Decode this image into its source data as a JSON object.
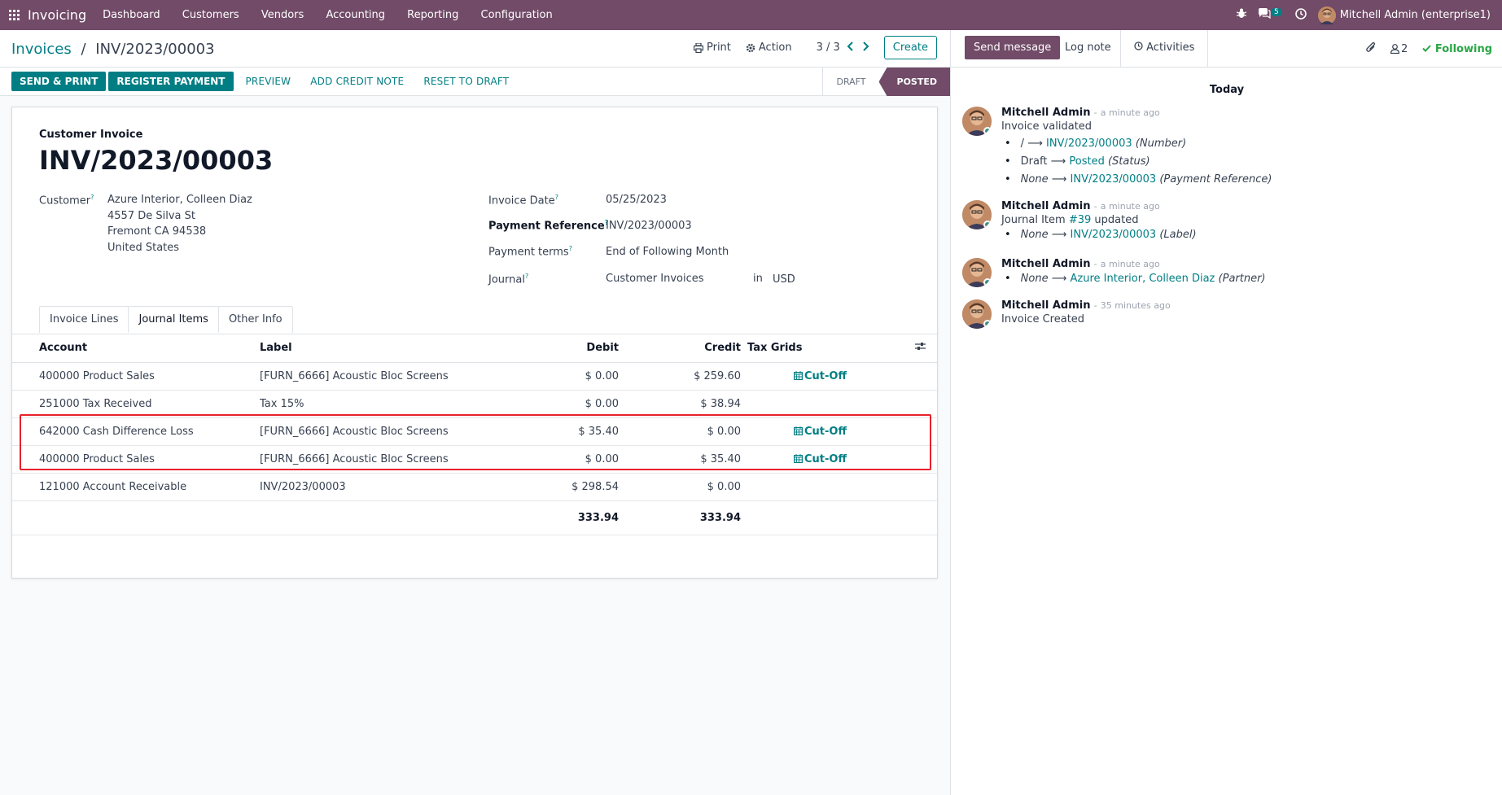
{
  "navbar": {
    "app_name": "Invoicing",
    "menu": [
      "Dashboard",
      "Customers",
      "Vendors",
      "Accounting",
      "Reporting",
      "Configuration"
    ],
    "chat_badge": "5",
    "user": "Mitchell Admin (enterprise1)"
  },
  "control_panel": {
    "breadcrumb_parent": "Invoices",
    "breadcrumb_sep": "/",
    "breadcrumb_current": "INV/2023/00003",
    "print_label": "Print",
    "action_label": "Action",
    "pager": "3 / 3",
    "create_label": "Create"
  },
  "statusbar": {
    "buttons_primary": [
      "SEND & PRINT",
      "REGISTER PAYMENT"
    ],
    "buttons_secondary": [
      "PREVIEW",
      "ADD CREDIT NOTE",
      "RESET TO DRAFT"
    ],
    "states": [
      "DRAFT",
      "POSTED"
    ]
  },
  "invoice": {
    "type_label": "Customer Invoice",
    "name": "INV/2023/00003",
    "customer_label": "Customer",
    "customer_name": "Azure Interior, Colleen Diaz",
    "address_line1": "4557 De Silva St",
    "address_line2": "Fremont CA 94538",
    "address_line3": "United States",
    "invoice_date_label": "Invoice Date",
    "invoice_date": "05/25/2023",
    "payment_ref_label": "Payment Reference",
    "payment_ref": "INV/2023/00003",
    "payment_terms_label": "Payment terms",
    "payment_terms": "End of Following Month",
    "journal_label": "Journal",
    "journal": "Customer Invoices",
    "journal_in": "in",
    "currency": "USD",
    "help_mark": "?"
  },
  "tabs": [
    "Invoice Lines",
    "Journal Items",
    "Other Info"
  ],
  "journal_items": {
    "headers": [
      "Account",
      "Label",
      "Debit",
      "Credit",
      "Tax Grids"
    ],
    "rows": [
      {
        "account": "400000 Product Sales",
        "label": "[FURN_6666] Acoustic Bloc Screens",
        "debit": "$ 0.00",
        "credit": "$ 259.60",
        "cutoff": "Cut-Off"
      },
      {
        "account": "251000 Tax Received",
        "label": "Tax 15%",
        "debit": "$ 0.00",
        "credit": "$ 38.94",
        "cutoff": ""
      },
      {
        "account": "642000 Cash Difference Loss",
        "label": "[FURN_6666] Acoustic Bloc Screens",
        "debit": "$ 35.40",
        "credit": "$ 0.00",
        "cutoff": "Cut-Off"
      },
      {
        "account": "400000 Product Sales",
        "label": "[FURN_6666] Acoustic Bloc Screens",
        "debit": "$ 0.00",
        "credit": "$ 35.40",
        "cutoff": "Cut-Off"
      },
      {
        "account": "121000 Account Receivable",
        "label": "INV/2023/00003",
        "debit": "$ 298.54",
        "credit": "$ 0.00",
        "cutoff": ""
      }
    ],
    "total_debit": "333.94",
    "total_credit": "333.94"
  },
  "chatter": {
    "send_message": "Send message",
    "log_note": "Log note",
    "activities": "Activities",
    "followers_count": "2",
    "following": "Following",
    "day": "Today",
    "author": "Mitchell Admin",
    "dash": "-",
    "ago_recent": "a minute ago",
    "ago_old": "35 minutes ago",
    "msg1_title": "Invoice validated",
    "msg1_l1_old": "/",
    "msg1_l1_new": "INV/2023/00003",
    "msg1_l1_field": "(Number)",
    "msg1_l2_old": "Draft",
    "msg1_l2_new": "Posted",
    "msg1_l2_field": "(Status)",
    "msg1_l3_old": "None",
    "msg1_l3_new": "INV/2023/00003",
    "msg1_l3_field": "(Payment Reference)",
    "msg2_prefix": "Journal Item",
    "msg2_link": "#39",
    "msg2_suffix": "updated",
    "msg2_l1_old": "None",
    "msg2_l1_new": "INV/2023/00003",
    "msg2_l1_field": "(Label)",
    "msg3_l1_old": "None",
    "msg3_l1_new": "Azure Interior, Colleen Diaz",
    "msg3_l1_field": "(Partner)",
    "msg4_title": "Invoice Created",
    "arrow": "⟶"
  },
  "colors": {
    "brand": "#714b67",
    "accent": "#017e84",
    "highlight": "#e8202a"
  }
}
